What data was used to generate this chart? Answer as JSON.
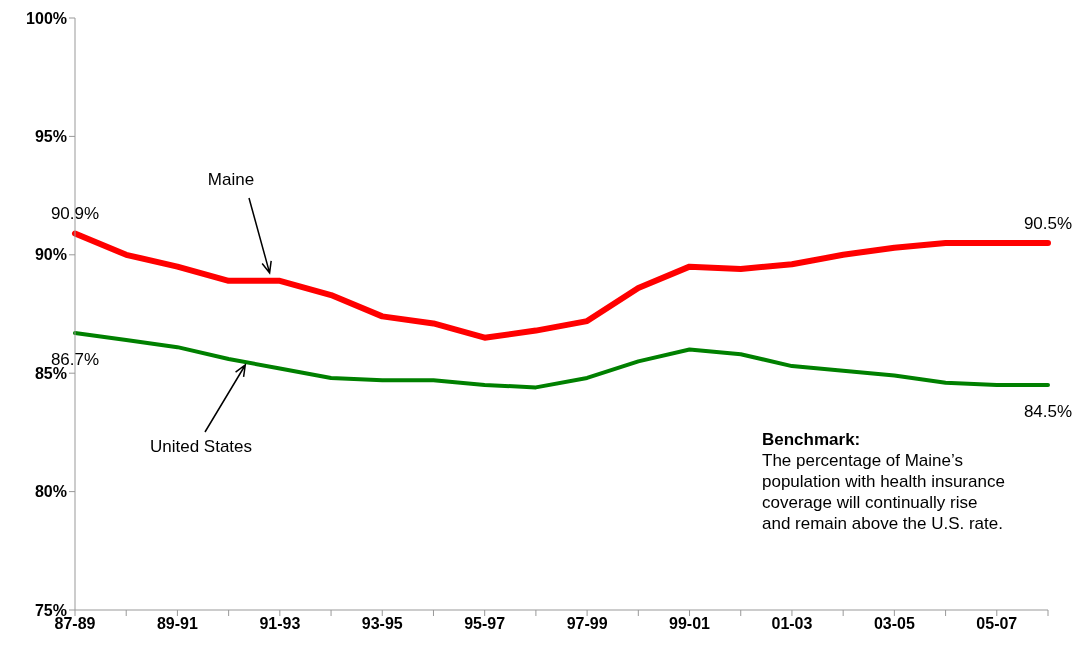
{
  "chart_data": {
    "type": "line",
    "categories": [
      "87-89",
      null,
      "89-91",
      null,
      "91-93",
      null,
      "93-95",
      null,
      "95-97",
      null,
      "97-99",
      null,
      "99-01",
      null,
      "01-03",
      null,
      "03-05",
      null,
      "05-07",
      null
    ],
    "series": [
      {
        "name": "Maine",
        "color": "#ff0000",
        "values": [
          90.9,
          90.0,
          89.5,
          88.9,
          88.9,
          88.3,
          87.4,
          87.1,
          86.5,
          86.8,
          87.2,
          88.6,
          89.5,
          89.4,
          89.6,
          90.0,
          90.3,
          90.5,
          90.5,
          90.5
        ],
        "value_labels": [
          "90.9%",
          null,
          null,
          null,
          null,
          null,
          null,
          null,
          null,
          null,
          null,
          null,
          null,
          null,
          null,
          null,
          null,
          null,
          null,
          "90.5%"
        ]
      },
      {
        "name": "United States",
        "color": "#008000",
        "values": [
          86.7,
          86.4,
          86.1,
          85.6,
          85.2,
          84.8,
          84.7,
          84.7,
          84.5,
          84.4,
          84.8,
          85.5,
          86.0,
          85.8,
          85.3,
          85.1,
          84.9,
          84.6,
          84.5,
          84.5
        ],
        "value_labels": [
          "86.7%",
          null,
          null,
          null,
          null,
          null,
          null,
          null,
          null,
          null,
          null,
          null,
          null,
          null,
          null,
          null,
          null,
          null,
          null,
          "84.5%"
        ]
      }
    ],
    "ylim": [
      75,
      100
    ],
    "yticks": [
      {
        "value": 75,
        "label": "75%"
      },
      {
        "value": 80,
        "label": "80%"
      },
      {
        "value": 85,
        "label": "85%"
      },
      {
        "value": 90,
        "label": "90%"
      },
      {
        "value": 95,
        "label": "95%"
      },
      {
        "value": 100,
        "label": "100%"
      }
    ],
    "annotations": [
      "Benchmark:\nThe percentage of Maine’s\npopulation with health insurance\ncoverage will continually rise\nand remain above the U.S. rate."
    ],
    "grid": false,
    "legend": false,
    "marker": "none",
    "line_style": "solid"
  }
}
